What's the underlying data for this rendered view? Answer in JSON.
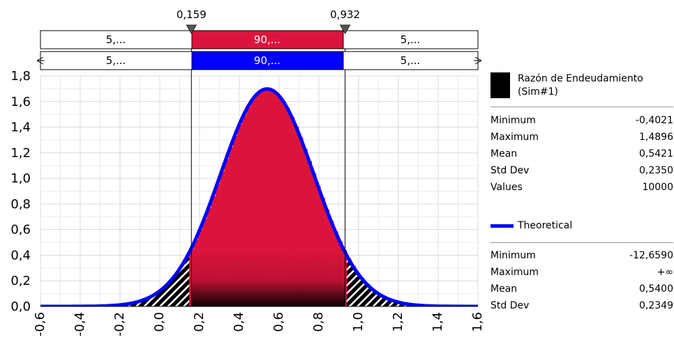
{
  "chart_data": {
    "type": "histogram",
    "title": "Razón de Endeudamiento (Sim#1)",
    "xlim": [
      -0.6,
      1.6
    ],
    "ylim": [
      0,
      1.8
    ],
    "x_ticks": [
      "-0,6",
      "-0,4",
      "-0,2",
      "0,0",
      "0,2",
      "0,4",
      "0,6",
      "0,8",
      "1,0",
      "1,2",
      "1,4",
      "1,6"
    ],
    "y_ticks": [
      "0,0",
      "0,2",
      "0,4",
      "0,6",
      "0,8",
      "1,0",
      "1,2",
      "1,4",
      "1,6",
      "1,8"
    ],
    "grid": true,
    "markers": {
      "left": "0,159",
      "right": "0,932",
      "left_value": 0.159,
      "right_value": 0.932
    },
    "band_simulated": {
      "left": "5,...",
      "middle": "90,...",
      "right": "5,..."
    },
    "band_theoretical": {
      "left": "5,...",
      "middle": "90,...",
      "right": "5,..."
    },
    "series": [
      {
        "name": "Razón de Endeudamiento (Sim#1)",
        "kind": "histogram",
        "mean": 0.5421,
        "std": 0.235,
        "color": "#dc143c"
      },
      {
        "name": "Theoretical",
        "kind": "curve",
        "mean": 0.54,
        "std": 0.2349,
        "color": "#0000ff"
      }
    ]
  },
  "legend": {
    "sim_title": "Razón de Endeudamiento (Sim#1)",
    "sim_stats": [
      {
        "label": "Minimum",
        "value": "-0,4021"
      },
      {
        "label": "Maximum",
        "value": "1,4896"
      },
      {
        "label": "Mean",
        "value": "0,5421"
      },
      {
        "label": "Std Dev",
        "value": "0,2350"
      },
      {
        "label": "Values",
        "value": "10000"
      }
    ],
    "theo_title": "Theoretical",
    "theo_stats": [
      {
        "label": "Minimum",
        "value": "-12,6590"
      },
      {
        "label": "Maximum",
        "value": "+∞"
      },
      {
        "label": "Mean",
        "value": "0,5400"
      },
      {
        "label": "Std Dev",
        "value": "0,2349"
      }
    ]
  }
}
